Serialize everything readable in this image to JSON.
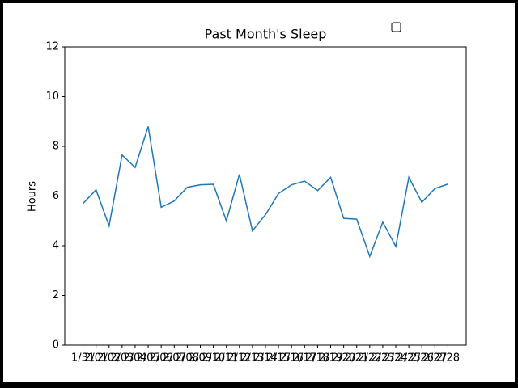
{
  "chart_data": {
    "type": "line",
    "title": "Past Month's Sleep",
    "y_label": "Hours",
    "categories": [
      "1/31",
      "2/01",
      "2/02",
      "2/03",
      "2/04",
      "2/05",
      "2/06",
      "2/07",
      "2/08",
      "2/09",
      "2/10",
      "2/11",
      "2/12",
      "2/13",
      "2/14",
      "2/15",
      "2/16",
      "2/17",
      "2/18",
      "2/19",
      "2/20",
      "2/21",
      "2/22",
      "2/23",
      "2/24",
      "2/25",
      "2/26",
      "2/27",
      "2/28"
    ],
    "series": [
      {
        "name": "Hours",
        "color": "#1f77b4",
        "values": [
          5.7,
          6.25,
          4.8,
          7.65,
          7.15,
          8.8,
          5.55,
          5.8,
          6.35,
          6.45,
          6.47,
          5.0,
          6.87,
          4.6,
          5.25,
          6.1,
          6.45,
          6.6,
          6.22,
          6.75,
          5.1,
          5.07,
          3.57,
          4.95,
          3.97,
          6.75,
          5.75,
          6.3,
          6.48
        ]
      }
    ],
    "ylim": [
      0,
      12
    ],
    "yticks": [
      0,
      2,
      4,
      6,
      8,
      10,
      12
    ],
    "grid": false
  }
}
